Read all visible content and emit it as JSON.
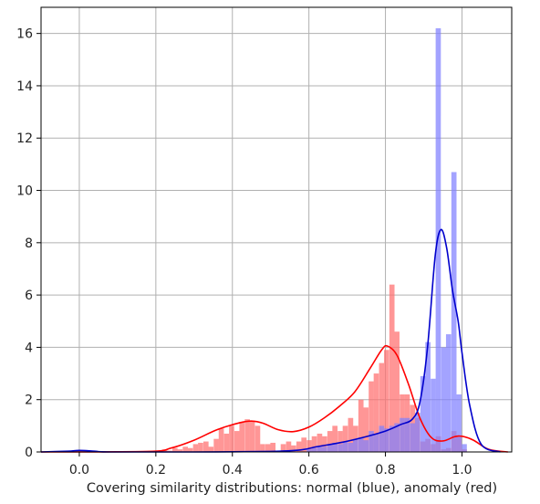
{
  "chart_data": {
    "type": "bar",
    "title": "",
    "xlabel": "Covering similarity distributions: normal (blue), anomaly (red)",
    "ylabel": "",
    "xlim": [
      -0.1,
      1.13
    ],
    "ylim": [
      0,
      17
    ],
    "grid": true,
    "x_ticks": [
      0.0,
      0.2,
      0.4,
      0.6,
      0.8,
      1.0
    ],
    "x_tick_labels": [
      "0.0",
      "0.2",
      "0.4",
      "0.6",
      "0.8",
      "1.0"
    ],
    "y_ticks": [
      0,
      2,
      4,
      6,
      8,
      10,
      12,
      14,
      16
    ],
    "y_tick_labels": [
      "0",
      "2",
      "4",
      "6",
      "8",
      "10",
      "12",
      "14",
      "16"
    ],
    "bin_width": 0.0135,
    "series": [
      {
        "kind": "histogram",
        "color": "#ff6f6f",
        "bins": [
          [
            0.223,
            0.1
          ],
          [
            0.236,
            0.05
          ],
          [
            0.25,
            0.15
          ],
          [
            0.263,
            0.1
          ],
          [
            0.277,
            0.2
          ],
          [
            0.29,
            0.15
          ],
          [
            0.304,
            0.3
          ],
          [
            0.317,
            0.35
          ],
          [
            0.331,
            0.4
          ],
          [
            0.344,
            0.2
          ],
          [
            0.358,
            0.5
          ],
          [
            0.371,
            0.9
          ],
          [
            0.385,
            0.7
          ],
          [
            0.398,
            1.0
          ],
          [
            0.412,
            0.8
          ],
          [
            0.425,
            1.15
          ],
          [
            0.439,
            1.25
          ],
          [
            0.452,
            1.2
          ],
          [
            0.466,
            1.0
          ],
          [
            0.479,
            0.3
          ],
          [
            0.493,
            0.3
          ],
          [
            0.506,
            0.35
          ],
          [
            0.52,
            0.05
          ],
          [
            0.533,
            0.3
          ],
          [
            0.547,
            0.4
          ],
          [
            0.56,
            0.25
          ],
          [
            0.574,
            0.4
          ],
          [
            0.587,
            0.55
          ],
          [
            0.601,
            0.45
          ],
          [
            0.614,
            0.6
          ],
          [
            0.628,
            0.7
          ],
          [
            0.641,
            0.6
          ],
          [
            0.655,
            0.8
          ],
          [
            0.668,
            1.0
          ],
          [
            0.682,
            0.8
          ],
          [
            0.695,
            1.0
          ],
          [
            0.709,
            1.3
          ],
          [
            0.722,
            1.0
          ],
          [
            0.736,
            2.0
          ],
          [
            0.749,
            1.7
          ],
          [
            0.763,
            2.7
          ],
          [
            0.776,
            3.0
          ],
          [
            0.79,
            3.4
          ],
          [
            0.803,
            3.9
          ],
          [
            0.817,
            6.4
          ],
          [
            0.83,
            4.6
          ],
          [
            0.844,
            2.2
          ],
          [
            0.857,
            2.2
          ],
          [
            0.871,
            1.8
          ],
          [
            0.884,
            1.3
          ],
          [
            0.898,
            0.4
          ],
          [
            0.911,
            0.5
          ],
          [
            0.925,
            0.3
          ],
          [
            0.938,
            0.6
          ],
          [
            0.952,
            0.1
          ],
          [
            0.965,
            0.15
          ],
          [
            0.979,
            0.8
          ],
          [
            0.992,
            0.6
          ],
          [
            1.006,
            0.1
          ]
        ]
      },
      {
        "kind": "histogram",
        "color": "#8080ff",
        "bins": [
          [
            0.601,
            0.1
          ],
          [
            0.614,
            0.15
          ],
          [
            0.628,
            0.2
          ],
          [
            0.641,
            0.2
          ],
          [
            0.655,
            0.3
          ],
          [
            0.668,
            0.35
          ],
          [
            0.682,
            0.3
          ],
          [
            0.695,
            0.4
          ],
          [
            0.709,
            0.35
          ],
          [
            0.722,
            0.5
          ],
          [
            0.736,
            0.55
          ],
          [
            0.749,
            0.45
          ],
          [
            0.763,
            0.8
          ],
          [
            0.776,
            0.7
          ],
          [
            0.79,
            1.0
          ],
          [
            0.803,
            0.9
          ],
          [
            0.817,
            1.0
          ],
          [
            0.83,
            1.1
          ],
          [
            0.844,
            1.3
          ],
          [
            0.857,
            1.3
          ],
          [
            0.871,
            1.1
          ],
          [
            0.884,
            1.5
          ],
          [
            0.898,
            2.9
          ],
          [
            0.911,
            4.2
          ],
          [
            0.925,
            2.8
          ],
          [
            0.938,
            16.2
          ],
          [
            0.952,
            4.0
          ],
          [
            0.965,
            4.5
          ],
          [
            0.979,
            10.7
          ],
          [
            0.992,
            2.2
          ],
          [
            1.006,
            0.3
          ]
        ]
      },
      {
        "kind": "density",
        "color": "#ff0000",
        "points": [
          [
            -0.1,
            0.0
          ],
          [
            0.18,
            0.02
          ],
          [
            0.24,
            0.15
          ],
          [
            0.3,
            0.45
          ],
          [
            0.36,
            0.85
          ],
          [
            0.42,
            1.12
          ],
          [
            0.45,
            1.18
          ],
          [
            0.48,
            1.1
          ],
          [
            0.52,
            0.85
          ],
          [
            0.56,
            0.78
          ],
          [
            0.6,
            0.95
          ],
          [
            0.64,
            1.3
          ],
          [
            0.68,
            1.75
          ],
          [
            0.72,
            2.3
          ],
          [
            0.76,
            3.2
          ],
          [
            0.79,
            3.9
          ],
          [
            0.805,
            4.05
          ],
          [
            0.83,
            3.7
          ],
          [
            0.86,
            2.6
          ],
          [
            0.89,
            1.3
          ],
          [
            0.92,
            0.55
          ],
          [
            0.95,
            0.42
          ],
          [
            0.98,
            0.58
          ],
          [
            1.0,
            0.6
          ],
          [
            1.03,
            0.45
          ],
          [
            1.07,
            0.1
          ],
          [
            1.12,
            0.0
          ]
        ]
      },
      {
        "kind": "density",
        "color": "#0000cc",
        "points": [
          [
            -0.1,
            0.0
          ],
          [
            -0.03,
            0.03
          ],
          [
            0.0,
            0.06
          ],
          [
            0.04,
            0.03
          ],
          [
            0.08,
            0.0
          ],
          [
            0.3,
            0.0
          ],
          [
            0.5,
            0.02
          ],
          [
            0.58,
            0.08
          ],
          [
            0.62,
            0.2
          ],
          [
            0.68,
            0.35
          ],
          [
            0.74,
            0.55
          ],
          [
            0.8,
            0.8
          ],
          [
            0.84,
            1.05
          ],
          [
            0.87,
            1.25
          ],
          [
            0.89,
            1.9
          ],
          [
            0.91,
            4.0
          ],
          [
            0.93,
            7.5
          ],
          [
            0.945,
            8.5
          ],
          [
            0.96,
            7.8
          ],
          [
            0.975,
            6.2
          ],
          [
            0.99,
            5.0
          ],
          [
            1.0,
            3.8
          ],
          [
            1.02,
            1.8
          ],
          [
            1.05,
            0.3
          ],
          [
            1.1,
            0.0
          ]
        ]
      }
    ]
  }
}
